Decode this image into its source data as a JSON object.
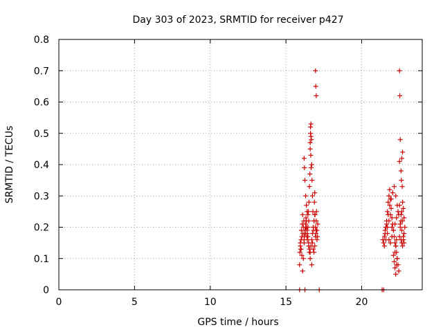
{
  "chart_data": {
    "type": "scatter",
    "title": "Day 303 of 2023, SRMTID for receiver p427",
    "xlabel": "GPS time / hours",
    "ylabel": "SRMTID / TECUs",
    "xlim": [
      0,
      24
    ],
    "ylim": [
      0,
      0.8
    ],
    "xticks": [
      0,
      5,
      10,
      15,
      20
    ],
    "yticks": [
      0,
      0.1,
      0.2,
      0.3,
      0.4,
      0.5,
      0.6,
      0.7,
      0.8
    ],
    "xtick_labels": [
      "0",
      "5",
      "10",
      "15",
      "20"
    ],
    "ytick_labels": [
      "0",
      "0.1",
      "0.2",
      "0.3",
      "0.4",
      "0.5",
      "0.6",
      "0.7",
      "0.8"
    ],
    "grid": true,
    "marker": "+",
    "color": "#cc0000",
    "series": [
      {
        "name": "SRMTID",
        "x": [
          15.9,
          15.92,
          15.95,
          15.98,
          16.0,
          16.02,
          16.05,
          16.08,
          16.1,
          16.12,
          16.15,
          16.18,
          16.2,
          16.22,
          16.25,
          16.28,
          16.3,
          16.32,
          16.35,
          16.38,
          16.4,
          16.42,
          16.45,
          16.48,
          16.5,
          16.52,
          16.55,
          16.58,
          16.6,
          16.62,
          16.65,
          16.68,
          16.7,
          16.72,
          16.75,
          16.78,
          16.8,
          16.82,
          16.85,
          16.88,
          16.9,
          16.92,
          16.95,
          16.98,
          17.0,
          17.02,
          17.05,
          17.08,
          17.1,
          16.6,
          16.62,
          16.65,
          16.64,
          16.66,
          16.95,
          16.97,
          17.0,
          16.2,
          16.22,
          16.25,
          16.3,
          16.35,
          16.4,
          16.45,
          16.5,
          16.55,
          16.6,
          16.7,
          16.75,
          16.8,
          16.85,
          16.9,
          16.95,
          17.0,
          17.05,
          16.1,
          16.15,
          16.05,
          16.0,
          15.95,
          16.2,
          16.25,
          16.3,
          16.35,
          16.4,
          16.45,
          16.5,
          16.55,
          16.6,
          16.65,
          16.7,
          16.75,
          16.8,
          16.85,
          16.9,
          21.4,
          21.45,
          21.5,
          21.55,
          21.6,
          21.65,
          21.7,
          21.75,
          21.8,
          21.85,
          21.9,
          21.95,
          22.0,
          22.05,
          22.1,
          22.15,
          22.2,
          22.25,
          22.3,
          22.35,
          22.4,
          22.45,
          22.5,
          22.55,
          22.6,
          22.65,
          22.7,
          22.75,
          22.8,
          22.85,
          22.5,
          22.52,
          22.55,
          22.5,
          22.6,
          22.65,
          22.7,
          22.62,
          22.68,
          21.5,
          21.6,
          21.7,
          21.8,
          21.9,
          22.0,
          22.1,
          22.2,
          22.3,
          22.4,
          22.5,
          22.6,
          22.7,
          22.8,
          21.55,
          21.65,
          21.75,
          21.85,
          21.95,
          22.05,
          22.15,
          22.25,
          22.35,
          22.45,
          22.55,
          22.65,
          22.75,
          22.1,
          22.15,
          22.2,
          22.25,
          22.3,
          22.35,
          22.2,
          22.25,
          22.3,
          21.7,
          21.8,
          21.9,
          22.0,
          22.6,
          22.65,
          22.7,
          22.75,
          22.8,
          15.9,
          16.25,
          17.2,
          21.35,
          21.45
        ],
        "y": [
          0.08,
          0.12,
          0.14,
          0.13,
          0.16,
          0.19,
          0.17,
          0.21,
          0.24,
          0.18,
          0.2,
          0.22,
          0.15,
          0.17,
          0.19,
          0.18,
          0.21,
          0.23,
          0.2,
          0.17,
          0.18,
          0.16,
          0.2,
          0.25,
          0.22,
          0.28,
          0.33,
          0.37,
          0.45,
          0.5,
          0.53,
          0.48,
          0.4,
          0.35,
          0.3,
          0.25,
          0.2,
          0.19,
          0.22,
          0.28,
          0.31,
          0.24,
          0.2,
          0.18,
          0.22,
          0.25,
          0.19,
          0.17,
          0.21,
          0.47,
          0.52,
          0.49,
          0.43,
          0.39,
          0.7,
          0.65,
          0.62,
          0.42,
          0.39,
          0.35,
          0.3,
          0.27,
          0.25,
          0.24,
          0.14,
          0.12,
          0.1,
          0.08,
          0.15,
          0.13,
          0.12,
          0.14,
          0.17,
          0.19,
          0.16,
          0.06,
          0.1,
          0.11,
          0.13,
          0.15,
          0.16,
          0.18,
          0.2,
          0.22,
          0.19,
          0.17,
          0.15,
          0.13,
          0.12,
          0.14,
          0.16,
          0.18,
          0.2,
          0.22,
          0.24,
          0.16,
          0.15,
          0.17,
          0.18,
          0.2,
          0.22,
          0.25,
          0.28,
          0.3,
          0.32,
          0.29,
          0.26,
          0.23,
          0.21,
          0.19,
          0.17,
          0.15,
          0.14,
          0.12,
          0.1,
          0.08,
          0.06,
          0.17,
          0.2,
          0.22,
          0.25,
          0.28,
          0.26,
          0.23,
          0.2,
          0.7,
          0.62,
          0.48,
          0.41,
          0.38,
          0.42,
          0.44,
          0.35,
          0.33,
          0.14,
          0.16,
          0.18,
          0.16,
          0.15,
          0.17,
          0.19,
          0.21,
          0.23,
          0.25,
          0.27,
          0.24,
          0.22,
          0.18,
          0.19,
          0.21,
          0.24,
          0.27,
          0.29,
          0.31,
          0.33,
          0.3,
          0.27,
          0.24,
          0.21,
          0.19,
          0.17,
          0.11,
          0.09,
          0.07,
          0.05,
          0.08,
          0.1,
          0.12,
          0.14,
          0.16,
          0.2,
          0.22,
          0.24,
          0.2,
          0.16,
          0.15,
          0.14,
          0.16,
          0.15,
          0.0,
          0.0,
          0.0,
          0.0,
          0.0
        ]
      }
    ]
  }
}
